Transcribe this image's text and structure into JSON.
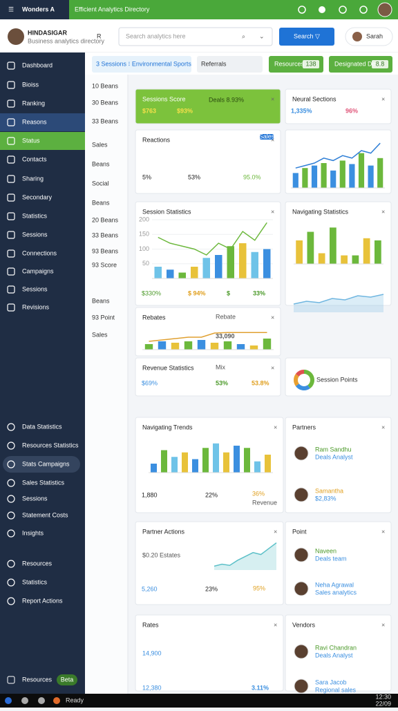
{
  "topbar": {
    "app": "Wonders A",
    "title": "Efficient Analytics Directory"
  },
  "brand": {
    "name": "HINDASIGAR",
    "tagline": "Business analytics directory"
  },
  "header": {
    "letter": "R",
    "search": "Search analytics here",
    "button": "Search ▽",
    "user": "Sarah"
  },
  "tabs": [
    "3 Sessions ⁝ Environmental Sports",
    "Referrals"
  ],
  "actions": [
    {
      "label": "Resources",
      "badge": "138"
    },
    {
      "label": "Designated Desk",
      "badge": "8.8"
    }
  ],
  "sidebar": {
    "items": [
      "Dashboard",
      "Bioiss",
      "Ranking",
      "Reasons",
      "Status",
      "Contacts",
      "Sharing",
      "Secondary",
      "Statistics",
      "Sessions",
      "Connections",
      "Campaigns",
      "Sessions",
      "Revisions"
    ],
    "active": 3,
    "selected": 4,
    "lower": [
      "Data Statistics",
      "Resources Statistics",
      "Stats Campaigns",
      "Sales Statistics",
      "Sessions",
      "Statement Costs",
      "Insights",
      "Resources",
      "Statistics",
      "Report Actions"
    ],
    "highlight": 2,
    "footer": {
      "label": "Resources",
      "badge": "Beta"
    }
  },
  "sublist": [
    "10 Beans",
    "30 Beans",
    "33 Beans",
    "Sales",
    "Beans",
    "Social",
    "Beans",
    "20 Beans",
    "33 Beans",
    "93 Beans",
    "93 Score",
    "Beans",
    "93 Point",
    "Sales"
  ],
  "cards": [
    {
      "title": "Sessions Score",
      "subtitle": "Deals 8.93%",
      "stats": [
        "$763",
        "$93%"
      ],
      "stat_colors": [
        "#f5e04a",
        "#f5e04a"
      ]
    },
    {
      "title": "Neural Sections",
      "stats": [
        "1,335%",
        "96%"
      ],
      "stat_colors": [
        "#3b8fe0",
        "#e0567a"
      ]
    },
    {
      "title": "Reactions",
      "badge": "Sales",
      "stats": [
        "5%",
        "53%",
        "95.0%"
      ],
      "stat_colors": [
        "#222",
        "#222",
        "#6cb83c"
      ]
    },
    {
      "chart": {
        "type": "bar",
        "values": [
          30,
          40,
          45,
          50,
          35,
          55,
          48,
          70,
          45,
          60
        ],
        "colors": [
          "#3b8fe0",
          "#6cb83c"
        ],
        "line": [
          40,
          45,
          50,
          60,
          55,
          65,
          60,
          75,
          70,
          90
        ],
        "line_color": "#2f7fd6",
        "ylim": [
          0,
          100
        ]
      }
    },
    {
      "title": "Session Statistics",
      "stats": [
        "$330%",
        "$ 94%",
        "$",
        "33%"
      ],
      "stat_colors": [
        "#4c9a2a",
        "#e0a020",
        "#4c9a2a",
        "#4c9a2a"
      ],
      "chart": {
        "type": "bar",
        "values": [
          40,
          30,
          20,
          40,
          70,
          80,
          110,
          120,
          90,
          100
        ],
        "colors": [
          "#6fc3e8",
          "#3b8fe0",
          "#6cb83c",
          "#e8c23a"
        ],
        "line": [
          140,
          120,
          110,
          100,
          80,
          120,
          100,
          160,
          130,
          190
        ],
        "line_color": "#6cb83c",
        "ylim": [
          0,
          200
        ],
        "yticks": [
          50,
          100,
          150,
          200
        ]
      }
    },
    {
      "title": "Navigating Statistics",
      "chart": {
        "type": "bar",
        "values": [
          55,
          75,
          25,
          85,
          20,
          20,
          60,
          55
        ],
        "colors": [
          "#e8c23a",
          "#6cb83c"
        ],
        "ylim": [
          0,
          100
        ]
      },
      "chart2": {
        "type": "area",
        "values": [
          30,
          40,
          35,
          50,
          45,
          60,
          55,
          65
        ],
        "color": "#6fb6e0",
        "ylim": [
          0,
          100
        ]
      }
    },
    {
      "title": "Rebates",
      "subtitle": "Rebate",
      "stats": [
        "33,090"
      ],
      "stat_colors": [
        "#555"
      ],
      "chart": {
        "type": "bar",
        "values": [
          20,
          30,
          25,
          30,
          35,
          25,
          30,
          20,
          15,
          40
        ],
        "colors": [
          "#6cb83c",
          "#3b8fe0",
          "#e8c23a"
        ],
        "line": [
          30,
          35,
          40,
          45,
          45,
          60,
          62,
          62,
          62,
          62
        ],
        "line_color": "#e0a030",
        "ylim": [
          0,
          100
        ]
      }
    },
    {
      "title": "Revenue Statistics",
      "subtitle": "Mix",
      "stats": [
        "$69%",
        "53%",
        "53.8%"
      ],
      "stat_colors": [
        "#3b8fe0",
        "#4c9a2a",
        "#e0a020"
      ]
    },
    {
      "title": "Session Points",
      "chart": {
        "type": "donut",
        "values": [
          40,
          25,
          20,
          15
        ],
        "colors": [
          "#6cb83c",
          "#3b8fe0",
          "#e8a030",
          "#e05050"
        ]
      }
    },
    {
      "title": "Navigating Trends",
      "subtitle": "Revenue",
      "stats": [
        "1,880",
        "22%",
        "36%"
      ],
      "stat_colors": [
        "#222",
        "#222",
        "#e0a020"
      ],
      "chart": {
        "type": "bar",
        "values": [
          20,
          50,
          35,
          45,
          30,
          55,
          65,
          45,
          60,
          55,
          25,
          40
        ],
        "colors": [
          "#3b8fe0",
          "#6cb83c",
          "#6fc3e8",
          "#e8c23a"
        ],
        "ylim": [
          0,
          80
        ]
      }
    },
    {
      "title": "Partners",
      "people": [
        {
          "name": "Ram Sandhu",
          "role": "Deals Analyst",
          "color": "#4c9a2a"
        },
        {
          "name": "Samantha",
          "role": "$2,83%",
          "color": "#e0a020"
        }
      ]
    },
    {
      "title": "Partner Actions",
      "subtitle": "$0.20 Estates",
      "stats": [
        "5,260",
        "23%",
        "95%"
      ],
      "stat_colors": [
        "#3b8fe0",
        "#222",
        "#e0a020"
      ],
      "chart": {
        "type": "area",
        "values": [
          10,
          15,
          12,
          25,
          35,
          45,
          40,
          55,
          70
        ],
        "color": "#5cc0c8",
        "ylim": [
          0,
          80
        ]
      }
    },
    {
      "title": "Point",
      "people": [
        {
          "name": "Naveen",
          "role": "Deals team",
          "color": "#4c9a2a"
        },
        {
          "name": "Neha Agrawal",
          "role": "Sales analytics",
          "color": "#3b8fe0"
        }
      ]
    },
    {
      "title": "Rates",
      "stats": [
        "14,900",
        "12,380",
        "3.11%"
      ],
      "stat_colors": [
        "#3b8fe0",
        "#3b8fe0",
        "#3b8fe0"
      ]
    },
    {
      "title": "Vendors",
      "people": [
        {
          "name": "Ravi Chandran",
          "role": "Deals Analyst",
          "color": "#4c9a2a"
        },
        {
          "name": "Sara Jacob",
          "role": "Regional sales",
          "color": "#3b8fe0"
        }
      ]
    }
  ],
  "taskbar": {
    "app": "Ready",
    "time": "12:30",
    "date": "22/09"
  }
}
